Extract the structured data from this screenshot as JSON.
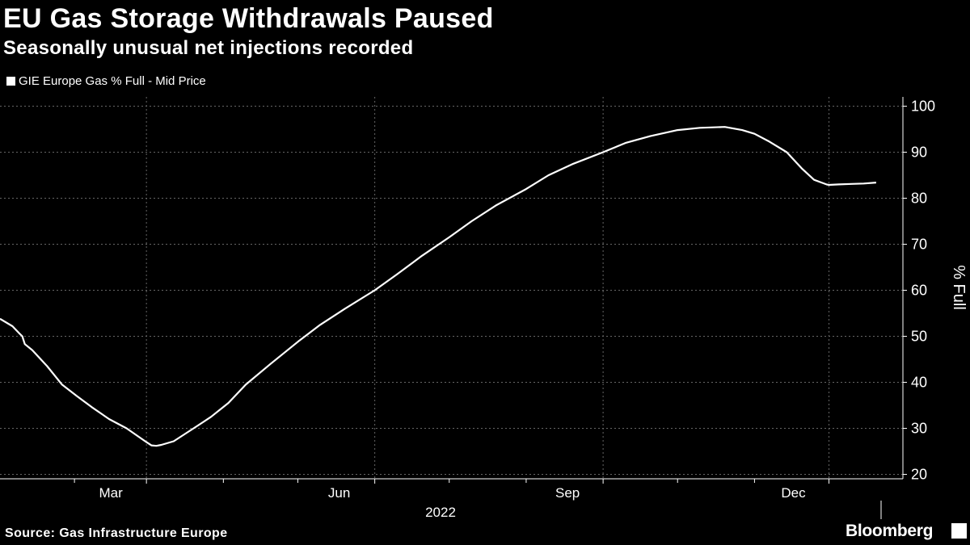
{
  "title": "EU Gas Storage Withdrawals Paused",
  "subtitle": "Seasonally unusual net injections recorded",
  "legend_label": "GIE Europe Gas % Full - Mid Price",
  "source": "Source: Gas Infrastructure Europe",
  "brand": "Bloomberg",
  "colors": {
    "background": "#000000",
    "line": "#ffffff",
    "grid": "#666666"
  },
  "chart_data": {
    "type": "line",
    "title": "EU Gas Storage Withdrawals Paused",
    "subtitle": "Seasonally unusual net injections recorded",
    "ylabel": "% Full",
    "xlabel": "2022",
    "ylim": [
      20,
      100
    ],
    "yticks": [
      20,
      30,
      40,
      50,
      60,
      70,
      80,
      90,
      100
    ],
    "xlim": [
      "2022-01-01",
      "2022-12-22"
    ],
    "xticks": [
      {
        "date": "2022-03-01",
        "label": "Mar"
      },
      {
        "date": "2022-06-01",
        "label": "Jun"
      },
      {
        "date": "2022-09-01",
        "label": "Sep"
      },
      {
        "date": "2022-12-01",
        "label": "Dec"
      }
    ],
    "minor_xticks": [
      "2022-01-31",
      "2022-04-01",
      "2022-05-01",
      "2022-07-01",
      "2022-08-01",
      "2022-10-01",
      "2022-11-01"
    ],
    "grid": true,
    "legend_position": "top-left",
    "series": [
      {
        "name": "GIE Europe Gas % Full - Mid Price",
        "x": [
          "2022-01-01",
          "2022-01-06",
          "2022-01-09",
          "2022-01-10",
          "2022-01-11",
          "2022-01-14",
          "2022-01-20",
          "2022-01-26",
          "2022-02-01",
          "2022-02-07",
          "2022-02-14",
          "2022-02-21",
          "2022-03-01",
          "2022-03-03",
          "2022-03-05",
          "2022-03-07",
          "2022-03-12",
          "2022-03-20",
          "2022-03-27",
          "2022-04-03",
          "2022-04-10",
          "2022-04-20",
          "2022-05-01",
          "2022-05-10",
          "2022-05-20",
          "2022-06-01",
          "2022-06-10",
          "2022-06-20",
          "2022-07-01",
          "2022-07-10",
          "2022-07-20",
          "2022-08-01",
          "2022-08-10",
          "2022-08-20",
          "2022-09-01",
          "2022-09-10",
          "2022-09-20",
          "2022-10-01",
          "2022-10-10",
          "2022-10-20",
          "2022-10-27",
          "2022-11-01",
          "2022-11-07",
          "2022-11-14",
          "2022-11-20",
          "2022-11-25",
          "2022-11-30",
          "2022-12-01",
          "2022-12-05",
          "2022-12-10",
          "2022-12-15",
          "2022-12-20"
        ],
        "y": [
          53.8,
          52.2,
          50.5,
          50.0,
          48.3,
          47.0,
          43.5,
          39.5,
          37.0,
          34.6,
          32.0,
          30.0,
          27.0,
          26.3,
          26.2,
          26.4,
          27.2,
          30.0,
          32.5,
          35.5,
          39.5,
          44.0,
          48.8,
          52.5,
          56.0,
          60.0,
          63.5,
          67.5,
          71.5,
          75.0,
          78.5,
          82.0,
          85.0,
          87.5,
          90.0,
          92.0,
          93.5,
          94.8,
          95.3,
          95.5,
          94.8,
          94.0,
          92.3,
          90.0,
          86.5,
          84.0,
          83.0,
          82.9,
          83.0,
          83.1,
          83.2,
          83.4
        ]
      }
    ]
  }
}
